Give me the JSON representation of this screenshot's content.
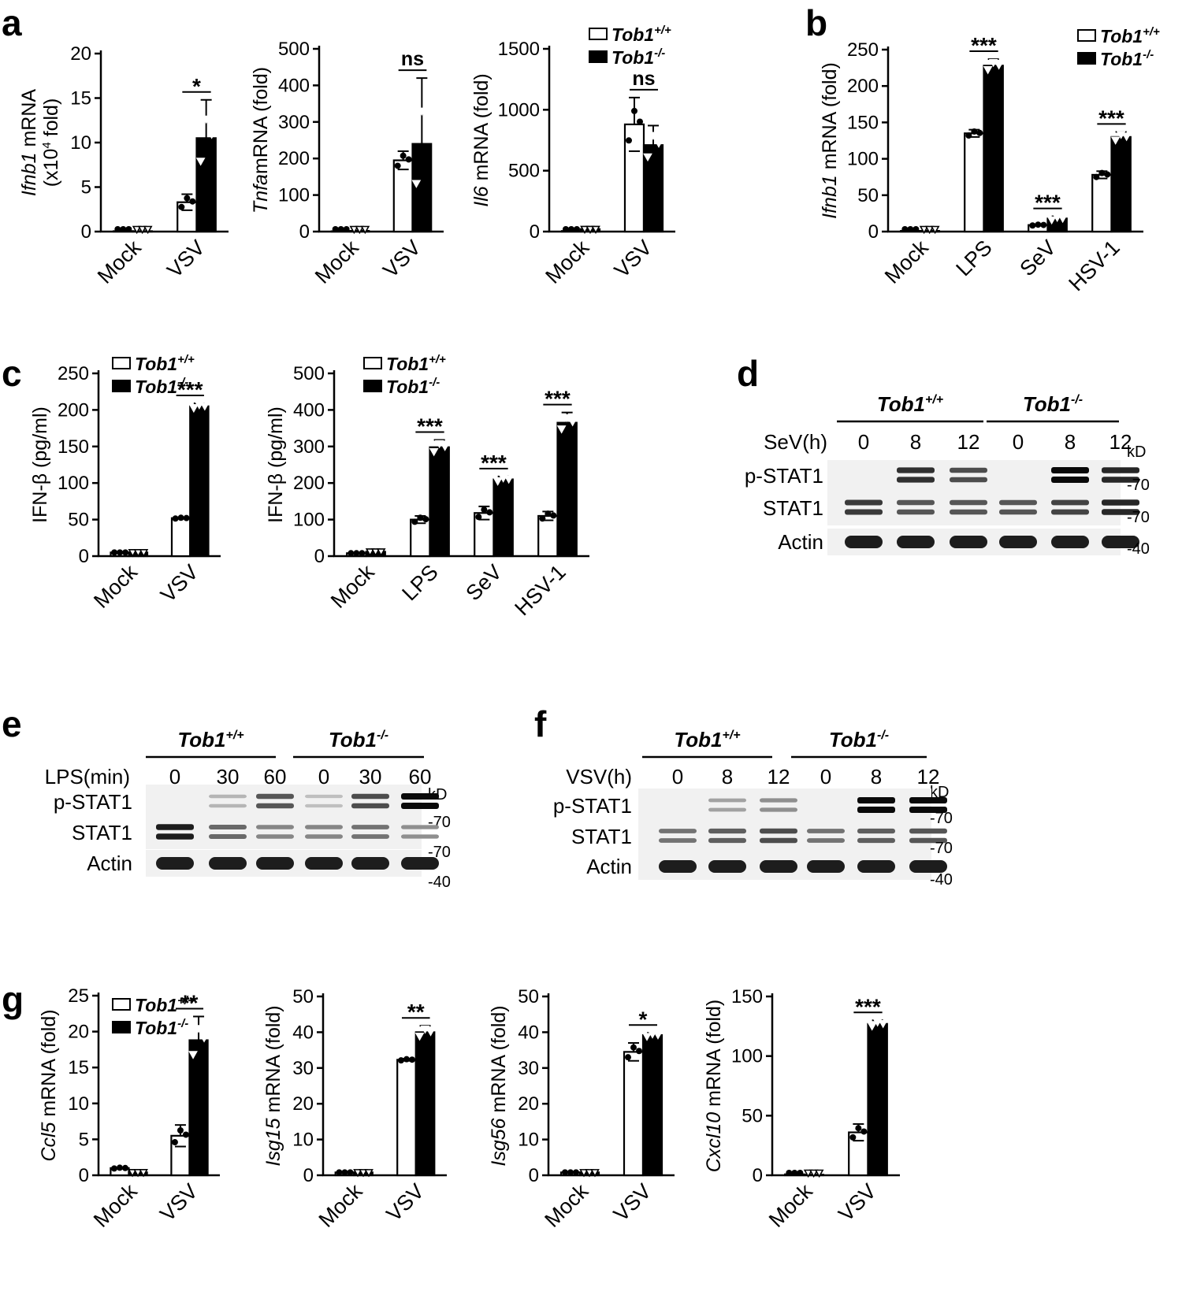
{
  "panel_letters": {
    "a": "a",
    "b": "b",
    "c": "c",
    "d": "d",
    "e": "e",
    "f": "f",
    "g": "g"
  },
  "legend": {
    "wt": "Tob1",
    "wt_sup": "+/+",
    "ko": "Tob1",
    "ko_sup": "-/-"
  },
  "colors": {
    "wt": "#ffffff",
    "ko": "#000000",
    "axis": "#000000"
  },
  "chart_data": [
    {
      "id": "a1",
      "type": "bar",
      "ylabel_italic": "Ifnb1",
      "ylabel": " mRNA",
      "ylabel2": "(x10",
      "ylabel2_sup": "4",
      "ylabel2_end": " fold)",
      "categories": [
        "Mock",
        "VSV"
      ],
      "ylim": [
        0,
        20
      ],
      "yticks": [
        0,
        5,
        10,
        15,
        20
      ],
      "series": [
        {
          "name": "Tob1+/+",
          "values": [
            0.05,
            3.3
          ],
          "err": [
            0,
            0.9
          ]
        },
        {
          "name": "Tob1-/-",
          "values": [
            0.05,
            10.5
          ],
          "err": [
            0,
            4.3
          ]
        }
      ],
      "sig": [
        {
          "cat": 1,
          "label": "*"
        }
      ]
    },
    {
      "id": "a2",
      "type": "bar",
      "ylabel_italic": "Tnfa",
      "ylabel": "mRNA (fold)",
      "categories": [
        "Mock",
        "VSV"
      ],
      "ylim": [
        0,
        500
      ],
      "yticks": [
        0,
        100,
        200,
        300,
        400,
        500
      ],
      "series": [
        {
          "name": "Tob1+/+",
          "values": [
            1,
            195
          ],
          "err": [
            0,
            25
          ]
        },
        {
          "name": "Tob1-/-",
          "values": [
            2,
            240
          ],
          "err": [
            0,
            180
          ]
        }
      ],
      "sig": [
        {
          "cat": 1,
          "label": "ns"
        }
      ]
    },
    {
      "id": "a3",
      "type": "bar",
      "ylabel_italic": "Il6",
      "ylabel": " mRNA (fold)",
      "categories": [
        "Mock",
        "VSV"
      ],
      "ylim": [
        0,
        1500
      ],
      "yticks": [
        0,
        500,
        1000,
        1500
      ],
      "series": [
        {
          "name": "Tob1+/+",
          "values": [
            5,
            880
          ],
          "err": [
            0,
            220
          ]
        },
        {
          "name": "Tob1-/-",
          "values": [
            20,
            710
          ],
          "err": [
            0,
            160
          ]
        }
      ],
      "sig": [
        {
          "cat": 1,
          "label": "ns"
        }
      ]
    },
    {
      "id": "b",
      "type": "bar",
      "ylabel_italic": "Ifnb1",
      "ylabel": " mRNA (fold)",
      "categories": [
        "Mock",
        "LPS",
        "SeV",
        "HSV-1"
      ],
      "ylim": [
        0,
        250
      ],
      "yticks": [
        0,
        50,
        100,
        150,
        200,
        250
      ],
      "series": [
        {
          "name": "Tob1+/+",
          "values": [
            1,
            135,
            9,
            78
          ],
          "err": [
            0,
            5,
            1,
            5
          ]
        },
        {
          "name": "Tob1-/-",
          "values": [
            1,
            228,
            18,
            130
          ],
          "err": [
            0,
            9,
            3,
            7
          ]
        }
      ],
      "sig": [
        {
          "cat": 1,
          "label": "***"
        },
        {
          "cat": 2,
          "label": "***"
        },
        {
          "cat": 3,
          "label": "***"
        }
      ]
    },
    {
      "id": "c1",
      "type": "bar",
      "ylabel": "IFN-β (pg/ml)",
      "categories": [
        "Mock",
        "VSV"
      ],
      "ylim": [
        0,
        250
      ],
      "yticks": [
        0,
        50,
        100,
        150,
        200,
        250
      ],
      "series": [
        {
          "name": "Tob1+/+",
          "values": [
            5,
            52
          ],
          "err": [
            0,
            1
          ]
        },
        {
          "name": "Tob1-/-",
          "values": [
            5,
            205
          ],
          "err": [
            0,
            4
          ]
        }
      ],
      "sig": [
        {
          "cat": 1,
          "label": "***"
        }
      ]
    },
    {
      "id": "c2",
      "type": "bar",
      "ylabel": "IFN-β (pg/ml)",
      "categories": [
        "Mock",
        "LPS",
        "SeV",
        "HSV-1"
      ],
      "ylim": [
        0,
        500
      ],
      "yticks": [
        0,
        100,
        200,
        300,
        400,
        500
      ],
      "series": [
        {
          "name": "Tob1+/+",
          "values": [
            8,
            100,
            118,
            110
          ],
          "err": [
            0,
            10,
            18,
            12
          ]
        },
        {
          "name": "Tob1-/-",
          "values": [
            12,
            298,
            210,
            365
          ],
          "err": [
            0,
            20,
            8,
            28
          ]
        }
      ],
      "sig": [
        {
          "cat": 1,
          "label": "***"
        },
        {
          "cat": 2,
          "label": "***"
        },
        {
          "cat": 3,
          "label": "***"
        }
      ]
    },
    {
      "id": "g1",
      "type": "bar",
      "ylabel_italic": "Ccl5",
      "ylabel": " mRNA (fold)",
      "categories": [
        "Mock",
        "VSV"
      ],
      "ylim": [
        0,
        25
      ],
      "yticks": [
        0,
        5,
        10,
        15,
        20,
        25
      ],
      "series": [
        {
          "name": "Tob1+/+",
          "values": [
            1.0,
            5.5
          ],
          "err": [
            0.1,
            1.5
          ]
        },
        {
          "name": "Tob1-/-",
          "values": [
            0.4,
            18.8
          ],
          "err": [
            0,
            3.3
          ]
        }
      ],
      "sig": [
        {
          "cat": 1,
          "label": "**"
        }
      ]
    },
    {
      "id": "g2",
      "type": "bar",
      "ylabel_italic": "Isg15",
      "ylabel": " mRNA (fold)",
      "categories": [
        "Mock",
        "VSV"
      ],
      "ylim": [
        0,
        50
      ],
      "yticks": [
        0,
        10,
        20,
        30,
        40,
        50
      ],
      "series": [
        {
          "name": "Tob1+/+",
          "values": [
            0.8,
            32.3
          ],
          "err": [
            0,
            0.3
          ]
        },
        {
          "name": "Tob1-/-",
          "values": [
            0.8,
            40
          ],
          "err": [
            0,
            1.8
          ]
        }
      ],
      "sig": [
        {
          "cat": 1,
          "label": "**"
        }
      ]
    },
    {
      "id": "g3",
      "type": "bar",
      "ylabel_italic": "Isg56",
      "ylabel": " mRNA (fold)",
      "categories": [
        "Mock",
        "VSV"
      ],
      "ylim": [
        0,
        50
      ],
      "yticks": [
        0,
        10,
        20,
        30,
        40,
        50
      ],
      "series": [
        {
          "name": "Tob1+/+",
          "values": [
            0.8,
            34.5
          ],
          "err": [
            0,
            2.5
          ]
        },
        {
          "name": "Tob1-/-",
          "values": [
            0.8,
            39.2
          ],
          "err": [
            0,
            0.6
          ]
        }
      ],
      "sig": [
        {
          "cat": 1,
          "label": "*"
        }
      ]
    },
    {
      "id": "g4",
      "type": "bar",
      "ylabel_italic": "Cxcl10",
      "ylabel": " mRNA (fold)",
      "categories": [
        "Mock",
        "VSV"
      ],
      "ylim": [
        0,
        150
      ],
      "yticks": [
        0,
        50,
        100,
        150
      ],
      "series": [
        {
          "name": "Tob1+/+",
          "values": [
            0.8,
            36
          ],
          "err": [
            0,
            7
          ]
        },
        {
          "name": "Tob1-/-",
          "values": [
            0.5,
            127
          ],
          "err": [
            0,
            3
          ]
        }
      ],
      "sig": [
        {
          "cat": 1,
          "label": "***"
        }
      ]
    }
  ],
  "blots": [
    {
      "id": "d",
      "treatment": "SeV(h)",
      "wt_group": "Tob1",
      "wt_sup": "+/+",
      "ko_group": "Tob1",
      "ko_sup": "-/-",
      "lanes": [
        "0",
        "8",
        "12",
        "0",
        "8",
        "12"
      ],
      "rows": [
        "p-STAT1",
        "STAT1",
        "Actin"
      ],
      "kd_label": "kD",
      "markers": [
        "-70",
        "-70",
        "-40"
      ],
      "intensity": {
        "p-STAT1": [
          0.0,
          0.8,
          0.65,
          0.0,
          1.0,
          0.85
        ],
        "STAT1": [
          0.75,
          0.6,
          0.6,
          0.6,
          0.7,
          0.85
        ],
        "Actin": [
          1,
          1,
          1,
          1,
          1,
          1
        ]
      }
    },
    {
      "id": "e",
      "treatment": "LPS(min)",
      "wt_group": "Tob1",
      "wt_sup": "+/+",
      "ko_group": "Tob1",
      "ko_sup": "-/-",
      "lanes": [
        "0",
        "30",
        "60",
        "0",
        "30",
        "60"
      ],
      "rows": [
        "p-STAT1",
        "STAT1",
        "Actin"
      ],
      "kd_label": "kD",
      "markers": [
        "-70",
        "-70",
        "-40"
      ],
      "intensity": {
        "p-STAT1": [
          0.0,
          0.1,
          0.6,
          0.05,
          0.65,
          1.0
        ],
        "STAT1": [
          0.9,
          0.5,
          0.35,
          0.35,
          0.45,
          0.3
        ],
        "Actin": [
          1,
          1,
          1,
          1,
          1,
          1
        ]
      }
    },
    {
      "id": "f",
      "treatment": "VSV(h)",
      "wt_group": "Tob1",
      "wt_sup": "+/+",
      "ko_group": "Tob1",
      "ko_sup": "-/-",
      "lanes": [
        "0",
        "8",
        "12",
        "0",
        "8",
        "12"
      ],
      "rows": [
        "p-STAT1",
        "STAT1",
        "Actin"
      ],
      "kd_label": "kD",
      "markers": [
        "-70",
        "-70",
        "-40"
      ],
      "intensity": {
        "p-STAT1": [
          0.0,
          0.2,
          0.3,
          0.0,
          1.0,
          1.0
        ],
        "STAT1": [
          0.45,
          0.55,
          0.65,
          0.45,
          0.55,
          0.6
        ],
        "Actin": [
          1,
          1,
          1,
          1,
          1,
          1
        ]
      }
    }
  ]
}
